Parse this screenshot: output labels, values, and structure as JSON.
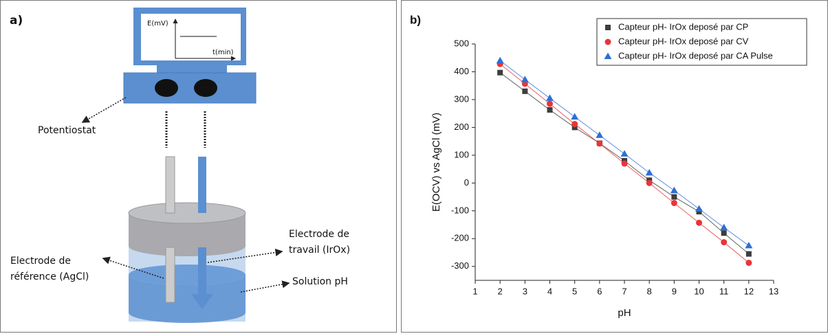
{
  "diagram": {
    "panel_label": "a)",
    "screen_y_label": "E(mV)",
    "screen_x_label": "t(min)",
    "potentiostat": "Potentiostat",
    "reference_electrode": [
      "Electrode de",
      "référence (AgCl)"
    ],
    "working_electrode": [
      "Electrode de",
      "travail (IrOx)"
    ],
    "solution": "Solution pH"
  },
  "chart_data": {
    "type": "scatter",
    "panel_label": "b)",
    "x_label": "pH",
    "y_label": "E(OCV) vs AgCl (mV)",
    "x": [
      2,
      3,
      4,
      5,
      6,
      7,
      8,
      9,
      10,
      11,
      12
    ],
    "series": [
      {
        "name": "Capteur pH- IrOx deposé par CP",
        "color": "#3d3d3d",
        "marker": "square",
        "values": [
          397,
          330,
          263,
          200,
          143,
          80,
          10,
          -50,
          -103,
          -180,
          -255
        ]
      },
      {
        "name": "Capteur pH- IrOx deposé par CV",
        "color": "#e8353a",
        "marker": "circle",
        "values": [
          428,
          357,
          285,
          212,
          142,
          70,
          0,
          -72,
          -143,
          -213,
          -287
        ]
      },
      {
        "name": "Capteur pH- IrOx deposé par CA Pulse",
        "color": "#2e6fd6",
        "marker": "triangle",
        "values": [
          440,
          372,
          305,
          238,
          172,
          105,
          37,
          -27,
          -93,
          -160,
          -225
        ]
      }
    ],
    "xlim": [
      1,
      13
    ],
    "xticks": [
      1,
      2,
      3,
      4,
      5,
      6,
      7,
      8,
      9,
      10,
      11,
      12,
      13
    ],
    "ylim": [
      -350,
      500
    ],
    "yticks": [
      -300,
      -200,
      -100,
      0,
      100,
      200,
      300,
      400,
      500
    ],
    "legend": "upper right"
  }
}
